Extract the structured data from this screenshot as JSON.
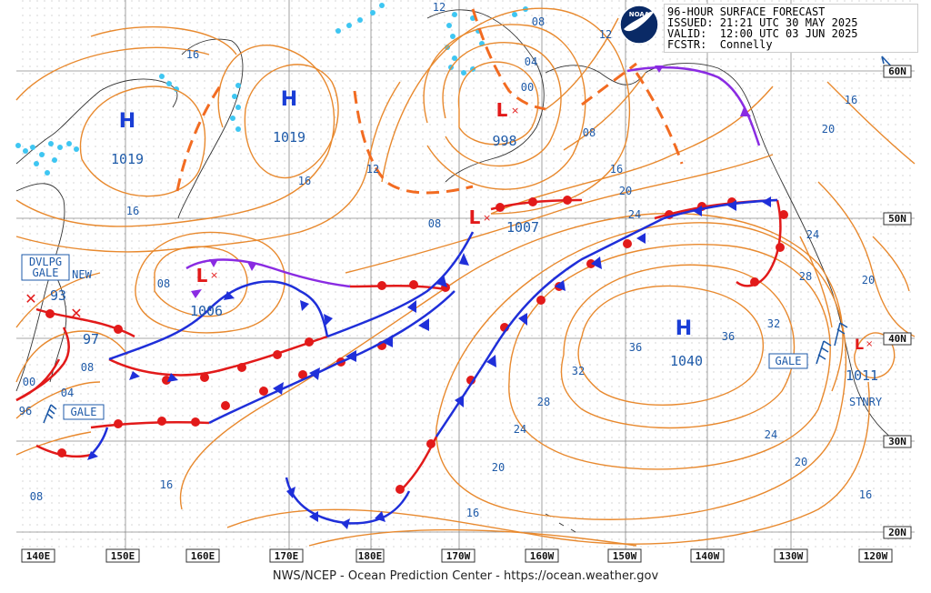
{
  "header": {
    "title": "96-HOUR SURFACE FORECAST",
    "issued": "ISSUED: 21:21 UTC 30 MAY 2025",
    "valid": "VALID:  12:00 UTC 03 JUN 2025",
    "forecaster": "FCSTR:  Connelly",
    "logo_text": "NOAA"
  },
  "footer": "NWS/NCEP - Ocean Prediction Center - https://ocean.weather.gov",
  "lon_labels": [
    "140E",
    "150E",
    "160E",
    "170E",
    "180E",
    "170W",
    "160W",
    "150W",
    "140W",
    "130W",
    "120W"
  ],
  "lat_labels": [
    "60N",
    "50N",
    "40N",
    "30N",
    "20N"
  ],
  "highs": [
    {
      "symbol": "H",
      "pressure": "1019"
    },
    {
      "symbol": "H",
      "pressure": "1019"
    },
    {
      "symbol": "H",
      "pressure": "1040"
    }
  ],
  "lows": [
    {
      "symbol": "L",
      "pressure": "998"
    },
    {
      "symbol": "L",
      "pressure": "1007"
    },
    {
      "symbol": "L",
      "pressure": "1006"
    },
    {
      "symbol": "L",
      "pressure": "1011"
    },
    {
      "symbol": "",
      "pressure": "93"
    },
    {
      "symbol": "",
      "pressure": "97"
    }
  ],
  "boxes": {
    "dvlpg": "DVLPG",
    "gale_nw": "GALE",
    "new": "NEW",
    "gale_sw": "GALE",
    "gale_e": "GALE",
    "stnry": "STNRY"
  },
  "isobar_labels": [
    "16",
    "16",
    "16",
    "16",
    "12",
    "08",
    "12",
    "08",
    "04",
    "00",
    "08",
    "08",
    "16",
    "20",
    "24",
    "20",
    "24",
    "28",
    "32",
    "36",
    "36",
    "32",
    "28",
    "24",
    "20",
    "16",
    "20",
    "16",
    "24",
    "20",
    "16",
    "08",
    "00",
    "04",
    "96",
    "08",
    "12"
  ],
  "colors": {
    "isobar": "#e8892e",
    "cold_front": "#1f2fd9",
    "warm_front": "#e21a1a",
    "occluded": "#8a2be2",
    "ice": "#3ec6f2",
    "label": "#1e5aa8",
    "grid": "#9a9a9a"
  }
}
